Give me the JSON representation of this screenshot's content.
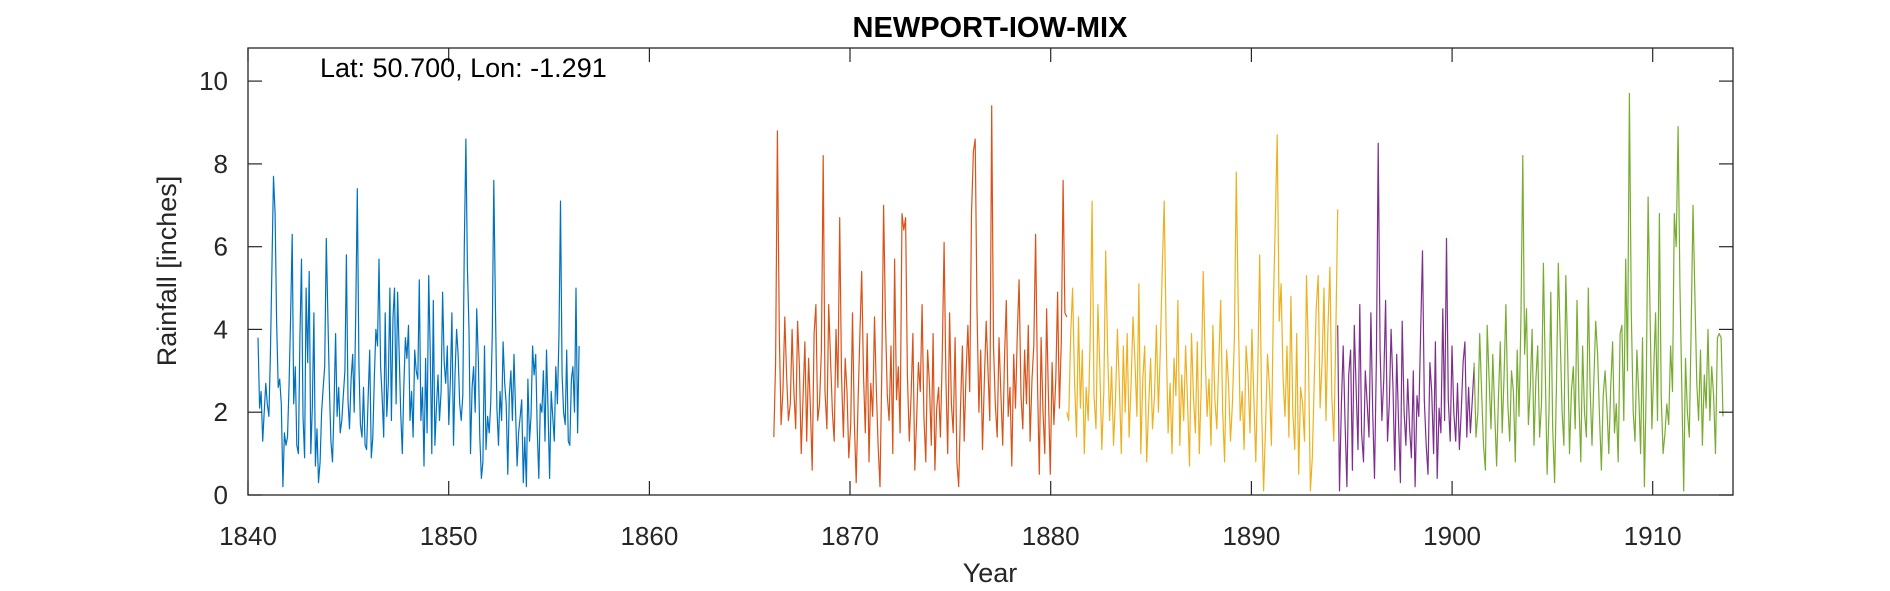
{
  "chart_data": {
    "type": "line",
    "title": "NEWPORT-IOW-MIX",
    "xlabel": "Year",
    "ylabel": "Rainfall [inches]",
    "annotation": "Lat: 50.700, Lon: -1.291",
    "xlim": [
      1840,
      1914
    ],
    "ylim": [
      0,
      10.8
    ],
    "xticks": [
      1840,
      1850,
      1860,
      1870,
      1880,
      1890,
      1900,
      1910
    ],
    "yticks": [
      0,
      2,
      4,
      6,
      8,
      10
    ],
    "grid": false,
    "box": true,
    "series": [
      {
        "color": "#0072BD",
        "x_start": 1840.5,
        "x_end": 1856.5,
        "values": [
          3.8,
          2.1,
          2.5,
          1.3,
          2.0,
          2.7,
          2.2,
          1.9,
          3.4,
          5.6,
          7.7,
          6.8,
          4.2,
          2.6,
          2.8,
          2.2,
          0.2,
          1.5,
          1.2,
          1.4,
          2.7,
          4.3,
          6.3,
          2.2,
          3.1,
          1.2,
          1.0,
          3.8,
          5.7,
          1.9,
          0.9,
          5.0,
          3.2,
          5.4,
          1.0,
          2.1,
          4.4,
          0.7,
          1.6,
          0.3,
          0.8,
          2.0,
          2.6,
          3.1,
          6.2,
          4.4,
          2.6,
          1.3,
          0.8,
          2.1,
          3.9,
          1.9,
          2.6,
          1.5,
          1.8,
          2.4,
          3.0,
          5.8,
          2.3,
          1.6,
          2.8,
          3.4,
          2.0,
          4.5,
          7.4,
          3.2,
          1.7,
          1.4,
          2.6,
          1.2,
          1.1,
          2.4,
          3.5,
          0.9,
          1.4,
          2.9,
          4.0,
          3.6,
          5.7,
          3.1,
          2.4,
          1.4,
          4.4,
          1.9,
          2.7,
          5.0,
          1.8,
          4.3,
          5.0,
          2.2,
          4.9,
          3.4,
          2.0,
          1.0,
          2.6,
          3.8,
          3.3,
          4.1,
          1.8,
          2.5,
          1.4,
          3.5,
          3.0,
          2.8,
          5.2,
          1.8,
          2.6,
          0.7,
          3.3,
          1.5,
          5.3,
          3.5,
          1.0,
          4.7,
          1.2,
          2.1,
          2.9,
          1.8,
          2.5,
          4.9,
          3.2,
          2.7,
          3.6,
          1.7,
          2.8,
          4.4,
          1.2,
          2.9,
          4.0,
          3.4,
          2.2,
          1.8,
          2.4,
          6.0,
          8.6,
          5.5,
          4.0,
          1.0,
          2.6,
          3.1,
          2.0,
          4.5,
          3.3,
          1.4,
          0.4,
          0.8,
          3.6,
          1.1,
          1.9,
          1.5,
          2.2,
          3.9,
          7.6,
          4.6,
          2.1,
          1.2,
          2.5,
          1.8,
          3.7,
          2.7,
          2.2,
          0.5,
          2.4,
          3.0,
          1.8,
          3.4,
          2.1,
          0.7,
          1.5,
          1.9,
          2.3,
          0.3,
          1.4,
          0.2,
          2.8,
          1.3,
          1.9,
          3.6,
          2.9,
          3.4,
          1.6,
          0.4,
          2.2,
          2.0,
          3.0,
          1.3,
          3.5,
          2.0,
          0.4,
          2.5,
          1.9,
          1.3,
          3.1,
          2.2,
          3.9,
          7.1,
          2.9,
          2.0,
          1.7,
          3.5,
          1.3,
          1.2,
          2.8,
          3.1,
          2.0,
          5.0,
          1.5,
          3.6
        ]
      },
      {
        "color": "#D95319",
        "x_start": 1866.2,
        "x_end": 1880.8,
        "values": [
          1.4,
          3.2,
          8.8,
          3.9,
          1.7,
          2.5,
          4.3,
          2.9,
          1.8,
          2.2,
          4.0,
          2.5,
          1.6,
          4.2,
          3.1,
          1.0,
          2.4,
          3.7,
          1.3,
          3.3,
          2.1,
          0.6,
          3.9,
          4.6,
          1.8,
          2.2,
          3.5,
          8.2,
          2.5,
          1.6,
          4.6,
          3.3,
          2.0,
          1.3,
          4.0,
          2.6,
          6.7,
          2.9,
          1.4,
          3.3,
          2.5,
          0.9,
          1.7,
          4.4,
          1.8,
          0.3,
          2.2,
          3.8,
          5.4,
          2.9,
          1.5,
          3.9,
          0.8,
          2.7,
          1.9,
          4.3,
          2.6,
          1.2,
          0.2,
          3.0,
          7.0,
          4.2,
          2.4,
          1.8,
          3.6,
          1.0,
          5.7,
          2.3,
          3.1,
          1.5,
          6.8,
          6.4,
          6.7,
          2.9,
          1.3,
          2.4,
          3.9,
          0.6,
          1.8,
          3.2,
          2.5,
          4.6,
          1.9,
          0.8,
          3.5,
          2.7,
          1.2,
          3.9,
          0.6,
          2.1,
          2.6,
          1.4,
          3.3,
          6.1,
          2.8,
          1.0,
          4.4,
          2.2,
          1.5,
          3.8,
          0.8,
          0.2,
          2.1,
          3.6,
          1.3,
          2.9,
          4.1,
          2.5,
          6.8,
          8.3,
          8.6,
          4.5,
          2.0,
          3.5,
          1.1,
          2.8,
          4.2,
          3.0,
          1.8,
          9.4,
          3.6,
          2.2,
          1.4,
          3.8,
          2.5,
          1.2,
          3.3,
          4.7,
          1.9,
          2.6,
          0.7,
          3.4,
          2.1,
          3.9,
          5.2,
          2.4,
          1.6,
          3.5,
          2.2,
          4.1,
          1.3,
          2.8,
          3.6,
          6.3,
          2.7,
          0.5,
          3.8,
          2.0,
          1.0,
          4.5,
          2.4,
          0.5,
          3.2,
          1.7,
          2.8,
          4.9,
          2.1,
          3.7,
          7.6,
          4.4,
          4.3
        ]
      },
      {
        "color": "#EDB120",
        "x_start": 1880.8,
        "x_end": 1894.3,
        "values": [
          2.0,
          1.8,
          3.9,
          5.0,
          2.7,
          1.4,
          4.3,
          2.1,
          3.5,
          1.0,
          2.6,
          1.8,
          3.7,
          7.1,
          2.4,
          1.6,
          4.6,
          3.0,
          1.1,
          2.5,
          5.9,
          3.4,
          1.8,
          3.1,
          1.2,
          2.3,
          4.0,
          2.6,
          1.0,
          3.6,
          2.0,
          3.9,
          1.4,
          2.7,
          4.3,
          3.2,
          1.9,
          5.1,
          1.0,
          2.8,
          3.6,
          0.8,
          2.1,
          3.3,
          1.6,
          2.4,
          4.1,
          2.0,
          3.5,
          5.5,
          7.1,
          3.8,
          1.5,
          2.7,
          1.0,
          3.3,
          2.4,
          4.7,
          1.2,
          2.9,
          1.8,
          3.6,
          2.2,
          0.7,
          3.9,
          2.4,
          1.5,
          3.7,
          1.0,
          2.6,
          5.4,
          3.4,
          1.9,
          2.8,
          1.2,
          4.1,
          2.3,
          1.6,
          3.2,
          4.7,
          2.0,
          0.8,
          3.5,
          2.7,
          1.3,
          2.2,
          3.8,
          7.8,
          4.4,
          1.8,
          2.5,
          1.1,
          3.6,
          2.9,
          1.5,
          4.0,
          2.3,
          0.8,
          3.1,
          5.8,
          2.0,
          0.1,
          1.7,
          3.4,
          2.6,
          1.2,
          4.6,
          6.6,
          8.7,
          4.2,
          5.1,
          2.8,
          1.9,
          3.6,
          1.4,
          4.8,
          2.0,
          1.1,
          3.9,
          0.5,
          2.6,
          2.2,
          1.3,
          5.3,
          3.4,
          0.1,
          0.9,
          2.8,
          4.5,
          5.3,
          2.1,
          3.2,
          5.0,
          1.8,
          4.0,
          5.5,
          2.4,
          1.3,
          3.7,
          6.9
        ]
      },
      {
        "color": "#7E2F8E",
        "x_start": 1894.3,
        "x_end": 1901.1,
        "values": [
          4.1,
          0.1,
          2.2,
          3.6,
          1.8,
          0.2,
          2.9,
          3.5,
          0.6,
          4.1,
          2.6,
          1.1,
          4.6,
          1.5,
          0.8,
          3.0,
          2.2,
          1.4,
          4.4,
          2.0,
          0.4,
          3.3,
          8.5,
          3.5,
          1.8,
          2.8,
          4.7,
          1.3,
          2.2,
          4.0,
          2.6,
          0.6,
          3.4,
          1.8,
          0.3,
          4.2,
          2.0,
          1.2,
          2.8,
          1.6,
          0.9,
          3.0,
          0.2,
          2.4,
          1.9,
          4.0,
          5.9,
          2.3,
          1.2,
          0.5,
          3.2,
          2.5,
          1.0,
          3.7,
          0.4,
          2.1,
          1.5,
          4.5,
          1.8,
          6.2,
          2.3,
          1.3,
          3.6,
          2.0,
          1.3,
          2.7,
          1.1,
          2.0,
          3.2,
          3.7,
          1.4,
          2.6,
          1.5,
          2.3,
          3.1
        ]
      },
      {
        "color": "#77AC30",
        "x_start": 1901.1,
        "x_end": 1913.5,
        "values": [
          3.2,
          1.4,
          2.0,
          3.9,
          2.5,
          1.2,
          0.6,
          4.1,
          2.8,
          1.6,
          3.4,
          2.0,
          0.7,
          2.4,
          3.7,
          1.5,
          2.9,
          4.6,
          2.2,
          1.3,
          3.0,
          2.5,
          0.8,
          3.5,
          1.9,
          4.2,
          8.2,
          3.4,
          4.5,
          1.7,
          2.6,
          4.0,
          1.2,
          2.8,
          3.6,
          1.4,
          2.2,
          5.6,
          3.1,
          0.5,
          2.0,
          4.9,
          1.6,
          0.3,
          2.7,
          5.6,
          3.8,
          2.0,
          1.2,
          5.3,
          3.4,
          1.0,
          2.5,
          3.1,
          1.6,
          4.7,
          2.3,
          0.8,
          3.6,
          2.0,
          1.4,
          5.0,
          2.6,
          1.2,
          2.8,
          4.2,
          3.4,
          1.9,
          0.6,
          2.4,
          3.0,
          2.1,
          1.0,
          2.6,
          3.7,
          1.5,
          2.2,
          0.8,
          3.9,
          4.1,
          1.8,
          5.7,
          3.0,
          9.7,
          4.4,
          2.0,
          1.3,
          3.5,
          2.4,
          1.0,
          3.8,
          0.2,
          2.7,
          7.2,
          4.5,
          1.6,
          3.0,
          4.4,
          1.8,
          6.8,
          2.4,
          1.0,
          1.5,
          2.2,
          1.7,
          3.6,
          2.5,
          6.8,
          6.0,
          8.9,
          5.1,
          2.6,
          0.1,
          3.3,
          2.0,
          1.4,
          4.1,
          7.0,
          4.8,
          2.7,
          1.8,
          3.5,
          1.2,
          2.9,
          2.1,
          4.0,
          1.8,
          3.1,
          2.4,
          1.0,
          3.8,
          3.9,
          3.8,
          1.9
        ]
      }
    ]
  }
}
